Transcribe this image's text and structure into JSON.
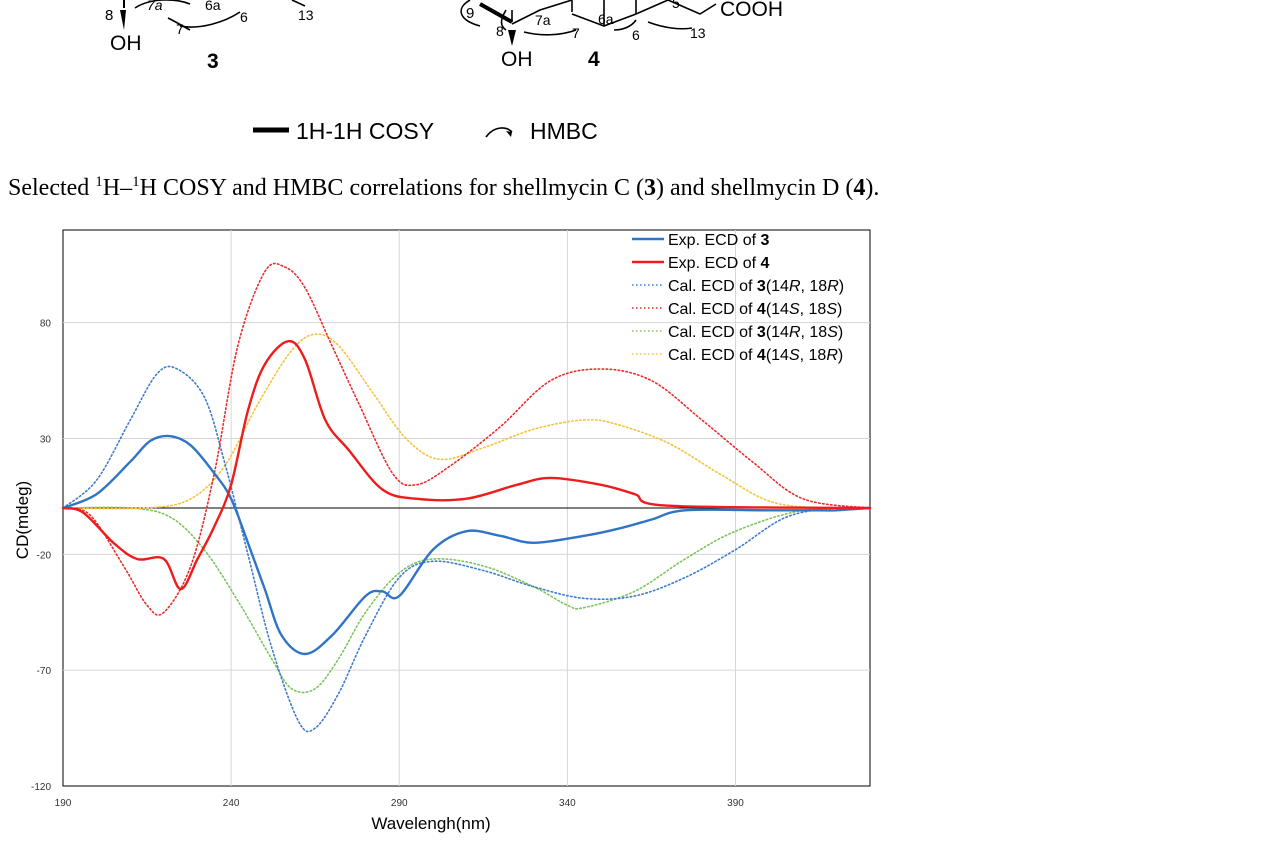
{
  "figure_top": {
    "compound_labels": [
      "3",
      "4"
    ],
    "atom_labels_left": [
      "8",
      "7a",
      "6a",
      "6",
      "7",
      "13"
    ],
    "atom_labels_right": [
      "9",
      "7a",
      "6a",
      "8",
      "7",
      "6",
      "13",
      "5"
    ],
    "group_labels": [
      "OH",
      "OH",
      "COOH"
    ],
    "legend": {
      "cosy": "1H-1H COSY",
      "hmbc": "HMBC"
    }
  },
  "caption": {
    "prefix": "Selected ",
    "sup1": "1",
    "h1": "H–",
    "sup2": "1",
    "mid": "H COSY and HMBC correlations for shellmycin C (",
    "cmpd1": "3",
    "mid2": ") and shellmycin D (",
    "cmpd2": "4",
    "end": ")."
  },
  "chart_data": {
    "type": "line",
    "xlabel": "Wavelengh(nm)",
    "ylabel": "CD(mdeg)",
    "xlim": [
      190,
      430
    ],
    "ylim": [
      -120,
      120
    ],
    "xticks": [
      190,
      240,
      290,
      340,
      390
    ],
    "yticks": [
      80,
      30,
      -20,
      -70,
      -120
    ],
    "grid": true,
    "legend_position": "top-right",
    "series": [
      {
        "name": "Exp. ECD of 3",
        "label_base": "Exp. ECD of ",
        "label_bold": "3",
        "label_rest": "",
        "color": "#2f74c6",
        "style": "solid",
        "points": [
          [
            190,
            0
          ],
          [
            200,
            6
          ],
          [
            210,
            20
          ],
          [
            216,
            29
          ],
          [
            222,
            31
          ],
          [
            228,
            27
          ],
          [
            235,
            15
          ],
          [
            240,
            4
          ],
          [
            245,
            -15
          ],
          [
            250,
            -35
          ],
          [
            255,
            -55
          ],
          [
            262,
            -63
          ],
          [
            270,
            -55
          ],
          [
            280,
            -38
          ],
          [
            285,
            -36
          ],
          [
            290,
            -38
          ],
          [
            300,
            -18
          ],
          [
            310,
            -10
          ],
          [
            320,
            -12
          ],
          [
            330,
            -15
          ],
          [
            345,
            -12
          ],
          [
            355,
            -9
          ],
          [
            365,
            -5
          ],
          [
            375,
            -1
          ],
          [
            400,
            -1
          ],
          [
            415,
            -1
          ],
          [
            420,
            -1
          ],
          [
            430,
            0
          ]
        ]
      },
      {
        "name": "Exp. ECD of 4",
        "label_base": "Exp. ECD of ",
        "label_bold": "4",
        "label_rest": "",
        "color": "#ee1c1c",
        "style": "solid",
        "points": [
          [
            190,
            0
          ],
          [
            196,
            -2
          ],
          [
            205,
            -15
          ],
          [
            212,
            -22
          ],
          [
            220,
            -22
          ],
          [
            225,
            -35
          ],
          [
            230,
            -22
          ],
          [
            235,
            -8
          ],
          [
            240,
            10
          ],
          [
            245,
            42
          ],
          [
            250,
            62
          ],
          [
            257,
            72
          ],
          [
            262,
            64
          ],
          [
            268,
            38
          ],
          [
            275,
            25
          ],
          [
            285,
            8
          ],
          [
            295,
            4
          ],
          [
            310,
            4
          ],
          [
            325,
            10
          ],
          [
            335,
            13
          ],
          [
            350,
            10
          ],
          [
            360,
            6
          ],
          [
            370,
            1
          ],
          [
            430,
            0
          ]
        ]
      },
      {
        "name": "Cal. ECD of 3(14R, 18R)",
        "label_base": "Cal. ECD of ",
        "label_bold": "3",
        "label_rest": "(14R, 18R)",
        "color": "#3f7ccc",
        "style": "dotted",
        "points": [
          [
            190,
            0
          ],
          [
            200,
            12
          ],
          [
            210,
            38
          ],
          [
            218,
            58
          ],
          [
            224,
            60
          ],
          [
            232,
            48
          ],
          [
            238,
            20
          ],
          [
            245,
            -20
          ],
          [
            252,
            -60
          ],
          [
            260,
            -92
          ],
          [
            265,
            -95
          ],
          [
            272,
            -80
          ],
          [
            280,
            -55
          ],
          [
            290,
            -30
          ],
          [
            300,
            -23
          ],
          [
            315,
            -27
          ],
          [
            330,
            -34
          ],
          [
            345,
            -39
          ],
          [
            360,
            -38
          ],
          [
            375,
            -30
          ],
          [
            390,
            -18
          ],
          [
            405,
            -4
          ],
          [
            420,
            0
          ],
          [
            430,
            0
          ]
        ]
      },
      {
        "name": "Cal. ECD of 4(14S, 18S)",
        "label_base": "Cal. ECD of ",
        "label_bold": "4",
        "label_rest": "(14S, 18S)",
        "color": "#ee2a2a",
        "style": "dotted",
        "points": [
          [
            190,
            0
          ],
          [
            198,
            -3
          ],
          [
            208,
            -25
          ],
          [
            215,
            -42
          ],
          [
            220,
            -45
          ],
          [
            228,
            -25
          ],
          [
            235,
            15
          ],
          [
            242,
            70
          ],
          [
            250,
            102
          ],
          [
            256,
            104
          ],
          [
            262,
            95
          ],
          [
            270,
            70
          ],
          [
            278,
            45
          ],
          [
            288,
            15
          ],
          [
            295,
            10
          ],
          [
            305,
            18
          ],
          [
            320,
            35
          ],
          [
            335,
            55
          ],
          [
            350,
            60
          ],
          [
            365,
            55
          ],
          [
            380,
            38
          ],
          [
            395,
            20
          ],
          [
            410,
            4
          ],
          [
            430,
            0
          ]
        ]
      },
      {
        "name": "Cal. ECD of 3(14R, 18S)",
        "label_base": "Cal. ECD of ",
        "label_bold": "3",
        "label_rest": "(14R, 18S)",
        "color": "#7cc55a",
        "style": "dotted",
        "points": [
          [
            190,
            0
          ],
          [
            210,
            0
          ],
          [
            222,
            -4
          ],
          [
            232,
            -18
          ],
          [
            242,
            -40
          ],
          [
            252,
            -65
          ],
          [
            258,
            -78
          ],
          [
            265,
            -78
          ],
          [
            272,
            -65
          ],
          [
            280,
            -45
          ],
          [
            290,
            -28
          ],
          [
            300,
            -22
          ],
          [
            315,
            -25
          ],
          [
            330,
            -34
          ],
          [
            340,
            -42
          ],
          [
            345,
            -43
          ],
          [
            360,
            -36
          ],
          [
            375,
            -22
          ],
          [
            390,
            -10
          ],
          [
            410,
            -1
          ],
          [
            430,
            0
          ]
        ]
      },
      {
        "name": "Cal. ECD of 4(14S, 18R)",
        "label_base": "Cal. ECD of ",
        "label_bold": "4",
        "label_rest": "(14S, 18R)",
        "color": "#f5c33b",
        "style": "dotted",
        "points": [
          [
            190,
            0
          ],
          [
            215,
            0
          ],
          [
            228,
            4
          ],
          [
            238,
            18
          ],
          [
            248,
            45
          ],
          [
            258,
            68
          ],
          [
            265,
            75
          ],
          [
            272,
            70
          ],
          [
            282,
            50
          ],
          [
            292,
            30
          ],
          [
            302,
            21
          ],
          [
            315,
            26
          ],
          [
            330,
            34
          ],
          [
            345,
            38
          ],
          [
            355,
            36
          ],
          [
            370,
            28
          ],
          [
            385,
            15
          ],
          [
            400,
            3
          ],
          [
            415,
            0
          ],
          [
            430,
            0
          ]
        ]
      }
    ]
  }
}
